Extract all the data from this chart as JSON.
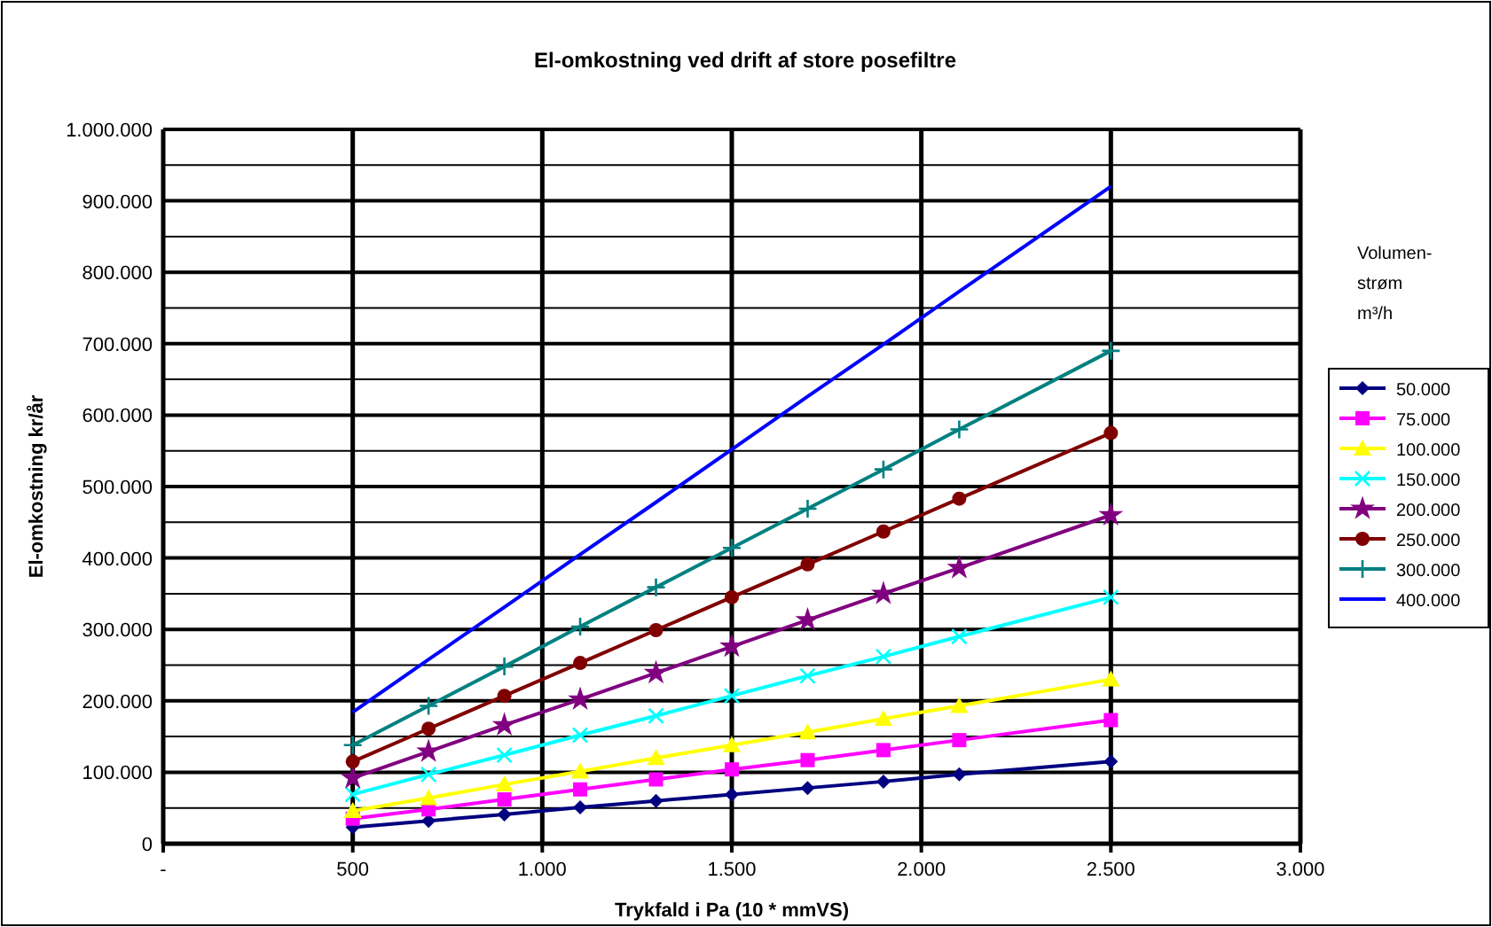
{
  "chart_data": {
    "type": "line",
    "title": "El-omkostning ved drift af store posefiltre",
    "xlabel": "Trykfald i Pa (10 * mmVS)",
    "ylabel": "El-omkostning kr/år",
    "legend_title": "Volumen-\nstrøm\nm³/h",
    "legend": "right",
    "grid": true,
    "x": [
      500,
      700,
      900,
      1100,
      1300,
      1500,
      1700,
      1900,
      2100,
      2500
    ],
    "xlim": [
      0,
      3000
    ],
    "xticks": [
      {
        "value": 0,
        "label": "-"
      },
      {
        "value": 500,
        "label": "500"
      },
      {
        "value": 1000,
        "label": "1.000"
      },
      {
        "value": 1500,
        "label": "1.500"
      },
      {
        "value": 2000,
        "label": "2.000"
      },
      {
        "value": 2500,
        "label": "2.500"
      },
      {
        "value": 3000,
        "label": "3.000"
      }
    ],
    "ylim": [
      0,
      1000000
    ],
    "yticks": [
      {
        "value": 0,
        "label": "0"
      },
      {
        "value": 50000,
        "label": null
      },
      {
        "value": 100000,
        "label": "100.000"
      },
      {
        "value": 150000,
        "label": null
      },
      {
        "value": 200000,
        "label": "200.000"
      },
      {
        "value": 250000,
        "label": null
      },
      {
        "value": 300000,
        "label": "300.000"
      },
      {
        "value": 350000,
        "label": null
      },
      {
        "value": 400000,
        "label": "400.000"
      },
      {
        "value": 450000,
        "label": null
      },
      {
        "value": 500000,
        "label": "500.000"
      },
      {
        "value": 550000,
        "label": null
      },
      {
        "value": 600000,
        "label": "600.000"
      },
      {
        "value": 650000,
        "label": null
      },
      {
        "value": 700000,
        "label": "700.000"
      },
      {
        "value": 750000,
        "label": null
      },
      {
        "value": 800000,
        "label": "800.000"
      },
      {
        "value": 850000,
        "label": null
      },
      {
        "value": 900000,
        "label": "900.000"
      },
      {
        "value": 950000,
        "label": null
      },
      {
        "value": 1000000,
        "label": "1.000.000"
      }
    ],
    "series": [
      {
        "name": "50.000",
        "color": "#000080",
        "marker": "diamond",
        "values": [
          23000,
          32000,
          41000,
          51000,
          60000,
          69000,
          78000,
          87000,
          97000,
          115000
        ]
      },
      {
        "name": "75.000",
        "color": "#ff00ff",
        "marker": "square",
        "values": [
          35000,
          48000,
          62000,
          76000,
          90000,
          104000,
          117000,
          131000,
          145000,
          173000
        ]
      },
      {
        "name": "100.000",
        "color": "#ffff00",
        "marker": "triangle",
        "values": [
          46000,
          64000,
          83000,
          101000,
          120000,
          138000,
          156000,
          175000,
          193000,
          230000
        ]
      },
      {
        "name": "150.000",
        "color": "#00ffff",
        "marker": "x",
        "values": [
          69000,
          97000,
          124000,
          152000,
          179000,
          207000,
          235000,
          262000,
          290000,
          345000
        ]
      },
      {
        "name": "200.000",
        "color": "#800080",
        "marker": "star",
        "values": [
          92000,
          129000,
          166000,
          202000,
          239000,
          276000,
          313000,
          350000,
          386000,
          460000
        ]
      },
      {
        "name": "250.000",
        "color": "#800000",
        "marker": "circle",
        "values": [
          115000,
          161000,
          207000,
          253000,
          299000,
          345000,
          391000,
          437000,
          483000,
          575000
        ]
      },
      {
        "name": "300.000",
        "color": "#008080",
        "marker": "cross",
        "values": [
          138000,
          193000,
          248000,
          304000,
          359000,
          414000,
          469000,
          524000,
          580000,
          690000
        ]
      },
      {
        "name": "400.000",
        "color": "#0000ff",
        "marker": "none",
        "values": [
          184000,
          258000,
          331000,
          405000,
          478000,
          552000,
          626000,
          699000,
          773000,
          920000
        ]
      }
    ]
  }
}
